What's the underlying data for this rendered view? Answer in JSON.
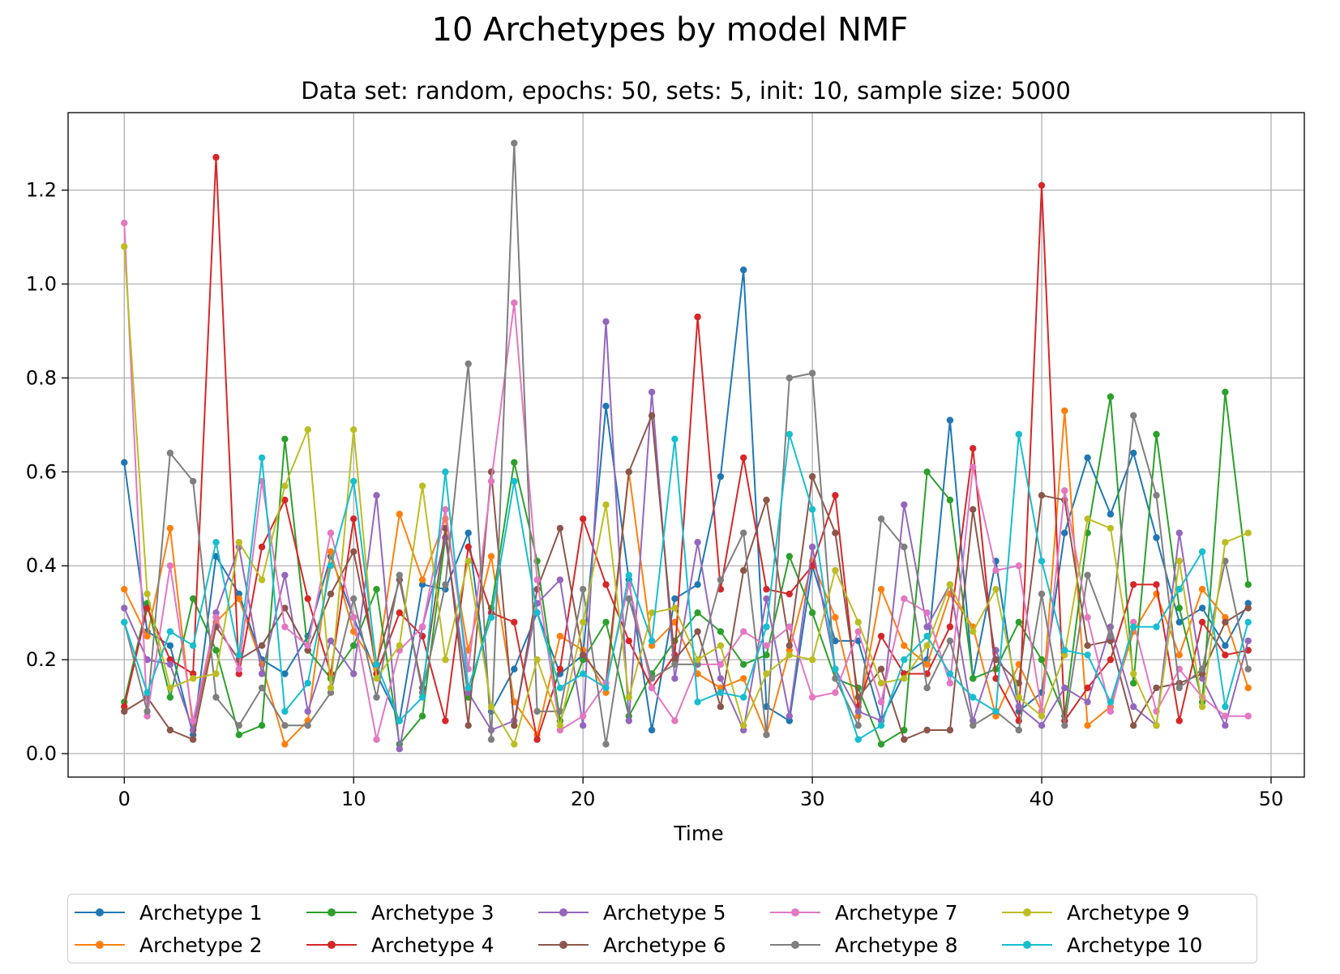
{
  "page": {
    "title": "10 Archetypes by model NMF"
  },
  "chart_data": {
    "type": "line",
    "title": "10 Archetypes by model NMF",
    "subtitle": "Data set: random, epochs: 50, sets: 5, init: 10, sample size: 5000",
    "xlabel": "Time",
    "ylabel": "",
    "xlim": [
      -2.45,
      51.45
    ],
    "ylim": [
      -0.05,
      1.365
    ],
    "xticks": [
      0,
      10,
      20,
      30,
      40,
      50
    ],
    "yticks": [
      0.0,
      0.2,
      0.4,
      0.6,
      0.8,
      1.0,
      1.2
    ],
    "grid": true,
    "legend_position": "bottom-center",
    "x": [
      0,
      1,
      2,
      3,
      4,
      5,
      6,
      7,
      8,
      9,
      10,
      11,
      12,
      13,
      14,
      15,
      16,
      17,
      18,
      19,
      20,
      21,
      22,
      23,
      24,
      25,
      26,
      27,
      28,
      29,
      30,
      31,
      32,
      33,
      34,
      35,
      36,
      37,
      38,
      39,
      40,
      41,
      42,
      43,
      44,
      45,
      46,
      47,
      48,
      49
    ],
    "series": [
      {
        "name": "Archetype 1",
        "color": "#1f77b4",
        "values": [
          0.62,
          0.26,
          0.23,
          0.04,
          0.42,
          0.34,
          0.2,
          0.17,
          0.25,
          0.42,
          0.29,
          0.17,
          0.07,
          0.36,
          0.35,
          0.47,
          0.09,
          0.18,
          0.3,
          0.17,
          0.21,
          0.74,
          0.37,
          0.05,
          0.33,
          0.36,
          0.59,
          1.03,
          0.1,
          0.07,
          0.4,
          0.24,
          0.24,
          0.07,
          0.17,
          0.2,
          0.71,
          0.16,
          0.41,
          0.09,
          0.13,
          0.47,
          0.63,
          0.51,
          0.64,
          0.46,
          0.28,
          0.31,
          0.23,
          0.32
        ]
      },
      {
        "name": "Archetype 2",
        "color": "#ff7f0e",
        "values": [
          0.35,
          0.25,
          0.48,
          0.05,
          0.28,
          0.33,
          0.19,
          0.02,
          0.07,
          0.43,
          0.26,
          0.18,
          0.51,
          0.37,
          0.5,
          0.22,
          0.42,
          0.11,
          0.04,
          0.25,
          0.22,
          0.13,
          0.6,
          0.23,
          0.28,
          0.17,
          0.14,
          0.16,
          0.04,
          0.22,
          0.41,
          0.29,
          0.08,
          0.35,
          0.23,
          0.19,
          0.34,
          0.27,
          0.08,
          0.19,
          0.09,
          0.73,
          0.06,
          0.1,
          0.26,
          0.34,
          0.21,
          0.35,
          0.29,
          0.14
        ]
      },
      {
        "name": "Archetype 3",
        "color": "#2ca02c",
        "values": [
          0.11,
          0.32,
          0.12,
          0.33,
          0.22,
          0.04,
          0.06,
          0.67,
          0.22,
          0.16,
          0.23,
          0.35,
          0.02,
          0.08,
          0.46,
          0.12,
          0.31,
          0.62,
          0.41,
          0.07,
          0.2,
          0.28,
          0.08,
          0.17,
          0.24,
          0.3,
          0.26,
          0.19,
          0.21,
          0.42,
          0.3,
          0.16,
          0.14,
          0.02,
          0.05,
          0.6,
          0.54,
          0.16,
          0.18,
          0.28,
          0.2,
          0.08,
          0.47,
          0.76,
          0.15,
          0.68,
          0.31,
          0.11,
          0.77,
          0.36
        ]
      },
      {
        "name": "Archetype 4",
        "color": "#d62728",
        "values": [
          0.1,
          0.31,
          0.2,
          0.17,
          1.27,
          0.17,
          0.44,
          0.54,
          0.33,
          0.17,
          0.5,
          0.17,
          0.3,
          0.25,
          0.07,
          0.44,
          0.3,
          0.28,
          0.03,
          0.18,
          0.5,
          0.36,
          0.24,
          0.14,
          0.21,
          0.93,
          0.35,
          0.63,
          0.35,
          0.34,
          0.4,
          0.55,
          0.1,
          0.25,
          0.17,
          0.17,
          0.27,
          0.65,
          0.16,
          0.07,
          1.21,
          0.07,
          0.14,
          0.2,
          0.36,
          0.36,
          0.07,
          0.28,
          0.21,
          0.22
        ]
      },
      {
        "name": "Archetype 5",
        "color": "#9467bd",
        "values": [
          0.31,
          0.2,
          0.19,
          0.05,
          0.3,
          0.44,
          0.17,
          0.38,
          0.09,
          0.24,
          0.17,
          0.55,
          0.01,
          0.27,
          0.46,
          0.13,
          0.05,
          0.07,
          0.32,
          0.37,
          0.06,
          0.92,
          0.07,
          0.77,
          0.16,
          0.45,
          0.16,
          0.05,
          0.33,
          0.08,
          0.44,
          0.18,
          0.09,
          0.07,
          0.53,
          0.27,
          0.36,
          0.07,
          0.22,
          0.1,
          0.06,
          0.14,
          0.11,
          0.27,
          0.1,
          0.06,
          0.47,
          0.16,
          0.06,
          0.24
        ]
      },
      {
        "name": "Archetype 6",
        "color": "#8c564b",
        "values": [
          0.09,
          0.12,
          0.05,
          0.03,
          0.27,
          0.2,
          0.23,
          0.31,
          0.22,
          0.34,
          0.43,
          0.19,
          0.37,
          0.14,
          0.48,
          0.06,
          0.6,
          0.06,
          0.35,
          0.48,
          0.21,
          0.15,
          0.6,
          0.72,
          0.2,
          0.26,
          0.1,
          0.39,
          0.54,
          0.23,
          0.59,
          0.47,
          0.12,
          0.18,
          0.03,
          0.05,
          0.05,
          0.52,
          0.2,
          0.15,
          0.55,
          0.54,
          0.23,
          0.24,
          0.06,
          0.14,
          0.15,
          0.17,
          0.28,
          0.31
        ]
      },
      {
        "name": "Archetype 7",
        "color": "#e377c2",
        "values": [
          1.13,
          0.08,
          0.4,
          0.07,
          0.29,
          0.18,
          0.58,
          0.27,
          0.23,
          0.47,
          0.29,
          0.03,
          0.22,
          0.27,
          0.52,
          0.18,
          0.58,
          0.96,
          0.37,
          0.05,
          0.08,
          0.15,
          0.36,
          0.14,
          0.07,
          0.19,
          0.19,
          0.26,
          0.23,
          0.27,
          0.12,
          0.13,
          0.26,
          0.11,
          0.33,
          0.3,
          0.15,
          0.61,
          0.39,
          0.4,
          0.09,
          0.56,
          0.29,
          0.09,
          0.28,
          0.09,
          0.18,
          0.12,
          0.08,
          0.08
        ]
      },
      {
        "name": "Archetype 8",
        "color": "#7f7f7f",
        "values": [
          0.28,
          0.09,
          0.64,
          0.58,
          0.12,
          0.06,
          0.14,
          0.06,
          0.06,
          0.13,
          0.33,
          0.12,
          0.38,
          0.13,
          0.36,
          0.83,
          0.03,
          1.3,
          0.09,
          0.09,
          0.35,
          0.02,
          0.33,
          0.16,
          0.19,
          0.19,
          0.37,
          0.47,
          0.04,
          0.8,
          0.81,
          0.16,
          0.06,
          0.5,
          0.44,
          0.14,
          0.24,
          0.06,
          0.09,
          0.05,
          0.34,
          0.06,
          0.38,
          0.25,
          0.72,
          0.55,
          0.14,
          0.18,
          0.41,
          0.18
        ]
      },
      {
        "name": "Archetype 9",
        "color": "#bcbd22",
        "values": [
          1.08,
          0.34,
          0.14,
          0.16,
          0.17,
          0.45,
          0.37,
          0.57,
          0.69,
          0.14,
          0.69,
          0.16,
          0.23,
          0.57,
          0.2,
          0.41,
          0.1,
          0.02,
          0.2,
          0.06,
          0.28,
          0.53,
          0.12,
          0.3,
          0.31,
          0.2,
          0.23,
          0.06,
          0.17,
          0.21,
          0.2,
          0.39,
          0.28,
          0.15,
          0.16,
          0.23,
          0.36,
          0.26,
          0.35,
          0.12,
          0.08,
          0.21,
          0.5,
          0.48,
          0.17,
          0.06,
          0.41,
          0.1,
          0.45,
          0.47
        ]
      },
      {
        "name": "Archetype 10",
        "color": "#17becf",
        "values": [
          0.28,
          0.13,
          0.26,
          0.23,
          0.45,
          0.21,
          0.63,
          0.09,
          0.15,
          0.4,
          0.58,
          0.19,
          0.07,
          0.12,
          0.6,
          0.14,
          0.29,
          0.58,
          0.3,
          0.14,
          0.17,
          0.14,
          0.38,
          0.24,
          0.67,
          0.11,
          0.13,
          0.12,
          0.27,
          0.68,
          0.52,
          0.18,
          0.03,
          0.06,
          0.2,
          0.25,
          0.17,
          0.12,
          0.09,
          0.68,
          0.41,
          0.22,
          0.21,
          0.11,
          0.27,
          0.27,
          0.35,
          0.43,
          0.1,
          0.28
        ]
      }
    ]
  }
}
